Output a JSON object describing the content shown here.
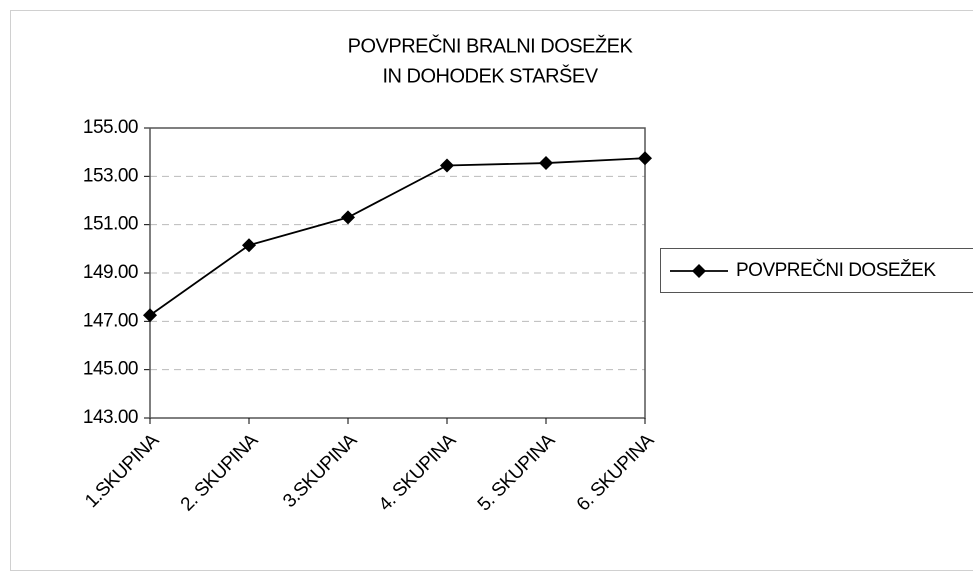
{
  "chart_data": {
    "type": "line",
    "title": [
      "POVPREČNI BRALNI DOSEŽEK",
      "IN DOHODEK STARŠEV"
    ],
    "categories": [
      "1.SKUPINA",
      "2. SKUPINA",
      "3.SKUPINA",
      "4. SKUPINA",
      "5. SKUPINA",
      "6. SKUPINA"
    ],
    "series": [
      {
        "name": "POVPREČNI DOSEŽEK",
        "color": "#000000",
        "values": [
          147.25,
          150.15,
          151.3,
          153.45,
          153.55,
          153.75
        ]
      }
    ],
    "ylim": [
      143,
      155
    ],
    "yticks": [
      {
        "value": 143,
        "label": "143.00"
      },
      {
        "value": 145,
        "label": "145.00"
      },
      {
        "value": 147,
        "label": "147.00"
      },
      {
        "value": 149,
        "label": "149.00"
      },
      {
        "value": 151,
        "label": "151.00"
      },
      {
        "value": 153,
        "label": "153.00"
      },
      {
        "value": 155,
        "label": "155.00"
      }
    ],
    "grid": true,
    "legend": "right"
  }
}
